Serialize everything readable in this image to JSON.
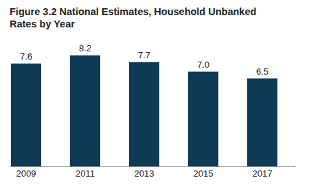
{
  "chart_data": {
    "type": "bar",
    "title": "Figure 3.2 National Estimates, Household Unbanked Rates by Year",
    "categories": [
      "2009",
      "2011",
      "2013",
      "2015",
      "2017"
    ],
    "values": [
      7.6,
      8.2,
      7.7,
      7.0,
      6.5
    ],
    "value_labels": [
      "7.6",
      "8.2",
      "7.7",
      "7.0",
      "6.5"
    ],
    "color": "#0e3a56",
    "ylim": [
      0,
      8.6
    ],
    "data_labels": true,
    "tick_labels": "x",
    "grid": false
  }
}
